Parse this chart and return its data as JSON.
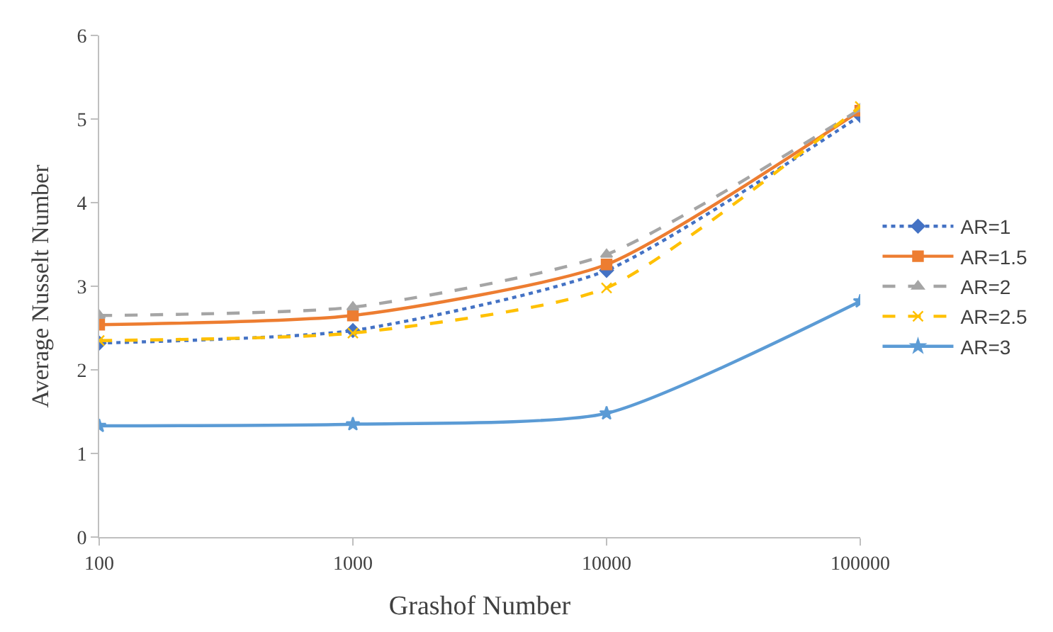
{
  "chart_data": {
    "type": "line",
    "xlabel": "Grashof Number",
    "ylabel": "Average Nusselt Number",
    "x": [
      100,
      1000,
      10000,
      100000
    ],
    "log": "x",
    "xlim": [
      100,
      100000
    ],
    "xticks": [
      100,
      1000,
      10000,
      100000
    ],
    "ylim": [
      0,
      6
    ],
    "yticks": [
      0,
      1,
      2,
      3,
      4,
      5,
      6
    ],
    "grid": false,
    "legend": "right",
    "series": [
      {
        "name": "AR=1",
        "color": "#4472c4",
        "marker": "diamond",
        "line_style": "dotted",
        "values": [
          2.32,
          2.47,
          3.19,
          5.04
        ]
      },
      {
        "name": "AR=1.5",
        "color": "#ed7d31",
        "marker": "square",
        "line_style": "solid",
        "values": [
          2.54,
          2.65,
          3.26,
          5.1
        ]
      },
      {
        "name": "AR=2",
        "color": "#a5a5a5",
        "marker": "triangle",
        "line_style": "dashed",
        "values": [
          2.65,
          2.75,
          3.38,
          5.12
        ]
      },
      {
        "name": "AR=2.5",
        "color": "#ffc000",
        "marker": "cross",
        "line_style": "dashed",
        "values": [
          2.35,
          2.44,
          2.98,
          5.15
        ]
      },
      {
        "name": "AR=3",
        "color": "#5b9bd5",
        "marker": "star",
        "line_style": "solid",
        "values": [
          1.33,
          1.35,
          1.48,
          2.82
        ]
      }
    ]
  }
}
